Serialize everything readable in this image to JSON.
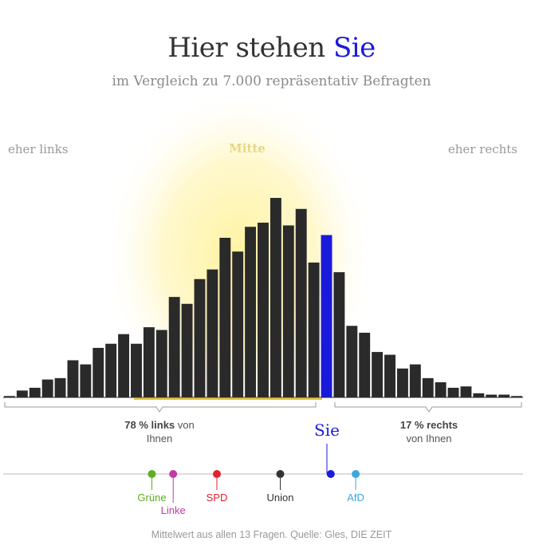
{
  "header": {
    "title_prefix": "Hier stehen ",
    "title_highlight": "Sie",
    "subtitle": "im Vergleich zu 7.000 repräsentativ Befragten"
  },
  "labels": {
    "left": "eher links",
    "center": "Mitte",
    "right": "eher rechts"
  },
  "stats": {
    "left_pct": "78",
    "left_word": "links",
    "left_rest": "von",
    "left_line2": "Ihnen",
    "right_pct": "17",
    "right_word": "rechts",
    "right_line2": "von Ihnen",
    "pct_symbol": "%"
  },
  "you_label": "Sie",
  "source": "Mittelwert aus allen 13 Fragen. Quelle: Gles, DIE ZEIT",
  "colors": {
    "bar": "#2a2a2a",
    "you": "#1a1adb",
    "mitte": "#b8960b",
    "glow": "#fff3a0"
  },
  "chart_data": {
    "type": "bar",
    "description_axis": "left-right political position, 41 bins",
    "values": [
      1,
      5,
      7,
      13,
      14,
      27,
      24,
      36,
      39,
      46,
      39,
      51,
      49,
      73,
      68,
      86,
      93,
      116,
      106,
      124,
      127,
      145,
      125,
      137,
      98,
      118,
      91,
      52,
      47,
      33,
      31,
      21,
      24,
      14,
      11,
      7,
      8,
      3,
      2,
      2,
      1
    ],
    "you_index": 25,
    "parties": [
      {
        "name": "Grüne",
        "color": "#5cae1f",
        "position": 0.286
      },
      {
        "name": "Linke",
        "color": "#c23aa4",
        "position": 0.327
      },
      {
        "name": "SPD",
        "color": "#e22231",
        "position": 0.411
      },
      {
        "name": "Union",
        "color": "#333333",
        "position": 0.533
      },
      {
        "name": "Sie",
        "color": "#1a1adb",
        "position": 0.63
      },
      {
        "name": "AfD",
        "color": "#3ba7e0",
        "position": 0.678
      }
    ]
  }
}
